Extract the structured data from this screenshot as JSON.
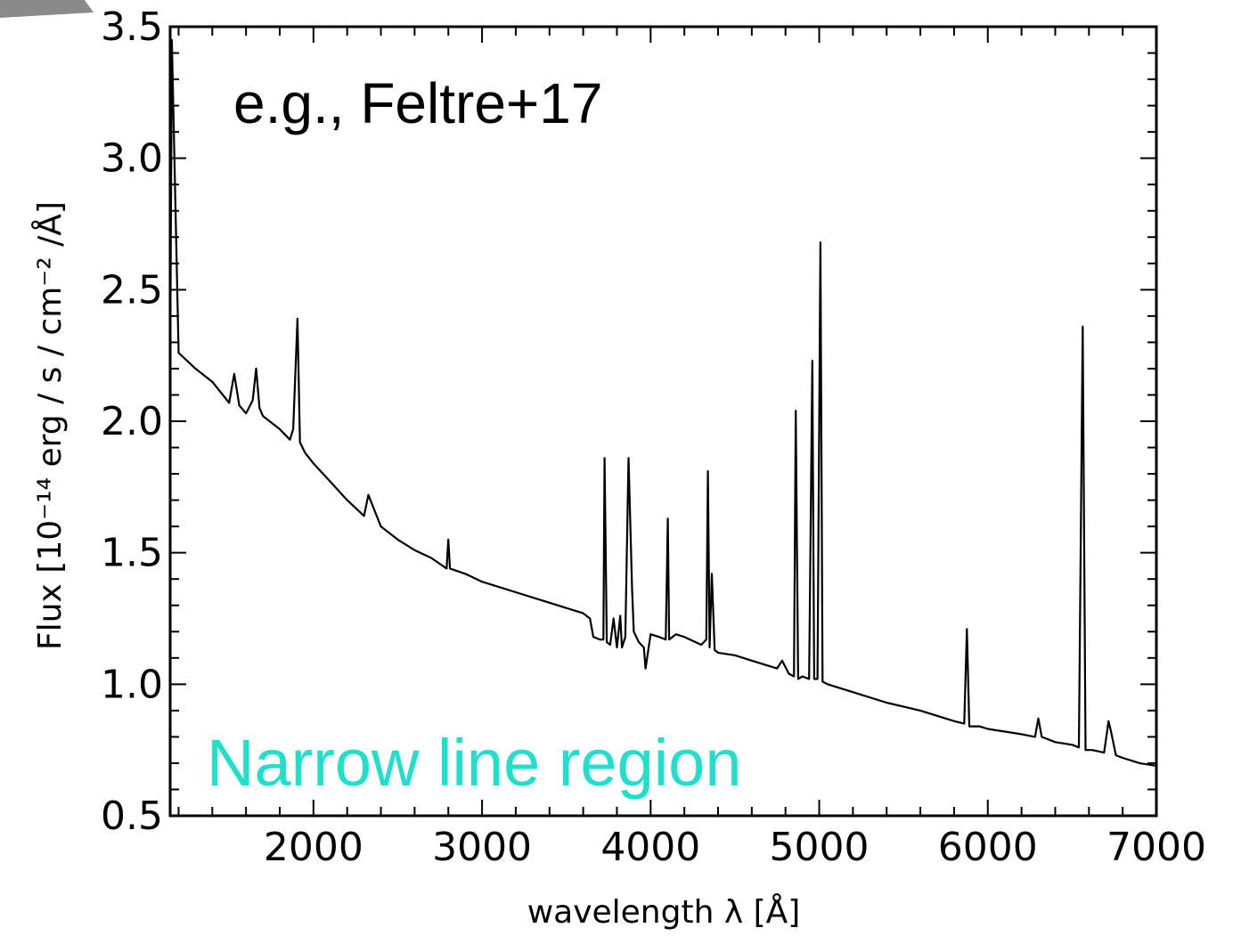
{
  "chart_data": {
    "type": "line",
    "title": "",
    "xlabel": "wavelength λ [Å]",
    "ylabel": "Flux [10⁻¹⁴ erg / s / cm⁻² /Å]",
    "xlim": [
      1150,
      7000
    ],
    "ylim": [
      0.5,
      3.5
    ],
    "x_ticks": [
      {
        "value": 2000,
        "label": "2000"
      },
      {
        "value": 3000,
        "label": "3000"
      },
      {
        "value": 4000,
        "label": "4000"
      },
      {
        "value": 5000,
        "label": "5000"
      },
      {
        "value": 6000,
        "label": "6000"
      },
      {
        "value": 7000,
        "label": "7000"
      }
    ],
    "y_ticks": [
      {
        "value": 0.5,
        "label": "0.5"
      },
      {
        "value": 1.0,
        "label": "1.0"
      },
      {
        "value": 1.5,
        "label": "1.5"
      },
      {
        "value": 2.0,
        "label": "2.0"
      },
      {
        "value": 2.5,
        "label": "2.5"
      },
      {
        "value": 3.0,
        "label": "3.0"
      },
      {
        "value": 3.5,
        "label": "3.5"
      }
    ],
    "grid": false,
    "line_color": "#000000",
    "series": [
      {
        "x": [
          1150,
          1160,
          1200,
          1300,
          1400,
          1500,
          1530,
          1560,
          1600,
          1640,
          1660,
          1680,
          1700,
          1800,
          1860,
          1880,
          1905,
          1920,
          1950,
          2000,
          2100,
          2200,
          2300,
          2326,
          2400,
          2500,
          2600,
          2700,
          2790,
          2800,
          2810,
          2900,
          3000,
          3200,
          3400,
          3600,
          3640,
          3660,
          3700,
          3720,
          3727,
          3740,
          3760,
          3780,
          3800,
          3820,
          3830,
          3850,
          3869,
          3890,
          3900,
          3930,
          3960,
          3970,
          4000,
          4050,
          4090,
          4102,
          4110,
          4150,
          4200,
          4300,
          4330,
          4340,
          4350,
          4363,
          4380,
          4400,
          4500,
          4600,
          4700,
          4750,
          4780,
          4820,
          4850,
          4861,
          4875,
          4900,
          4940,
          4959,
          4970,
          4990,
          5007,
          5020,
          5050,
          5100,
          5200,
          5400,
          5600,
          5800,
          5860,
          5876,
          5890,
          5950,
          6000,
          6200,
          6280,
          6300,
          6320,
          6400,
          6500,
          6540,
          6563,
          6580,
          6620,
          6690,
          6716,
          6731,
          6760,
          6800,
          6900,
          7000
        ],
        "y": [
          2.2,
          3.45,
          2.26,
          2.2,
          2.15,
          2.07,
          2.18,
          2.06,
          2.03,
          2.08,
          2.2,
          2.05,
          2.02,
          1.97,
          1.93,
          1.97,
          2.39,
          1.92,
          1.88,
          1.84,
          1.77,
          1.7,
          1.64,
          1.72,
          1.6,
          1.55,
          1.51,
          1.48,
          1.44,
          1.55,
          1.44,
          1.42,
          1.39,
          1.35,
          1.31,
          1.27,
          1.25,
          1.18,
          1.17,
          1.17,
          1.86,
          1.16,
          1.15,
          1.25,
          1.14,
          1.26,
          1.14,
          1.18,
          1.86,
          1.36,
          1.2,
          1.16,
          1.14,
          1.06,
          1.19,
          1.18,
          1.17,
          1.63,
          1.17,
          1.19,
          1.18,
          1.15,
          1.17,
          1.81,
          1.14,
          1.42,
          1.13,
          1.12,
          1.11,
          1.09,
          1.07,
          1.06,
          1.09,
          1.04,
          1.03,
          2.04,
          1.02,
          1.03,
          1.02,
          2.23,
          1.02,
          1.02,
          2.68,
          1.01,
          1.0,
          0.99,
          0.97,
          0.93,
          0.9,
          0.86,
          0.85,
          1.21,
          0.84,
          0.84,
          0.83,
          0.81,
          0.8,
          0.87,
          0.8,
          0.78,
          0.77,
          0.76,
          2.36,
          0.75,
          0.75,
          0.74,
          0.86,
          0.82,
          0.73,
          0.72,
          0.7,
          0.69
        ]
      }
    ]
  },
  "annotations": {
    "reference": "e.g., Feltre+17",
    "region": "Narrow line region",
    "region_color": "#1ee0cc"
  },
  "decoration": {
    "corner_shape_color": "#888888"
  }
}
